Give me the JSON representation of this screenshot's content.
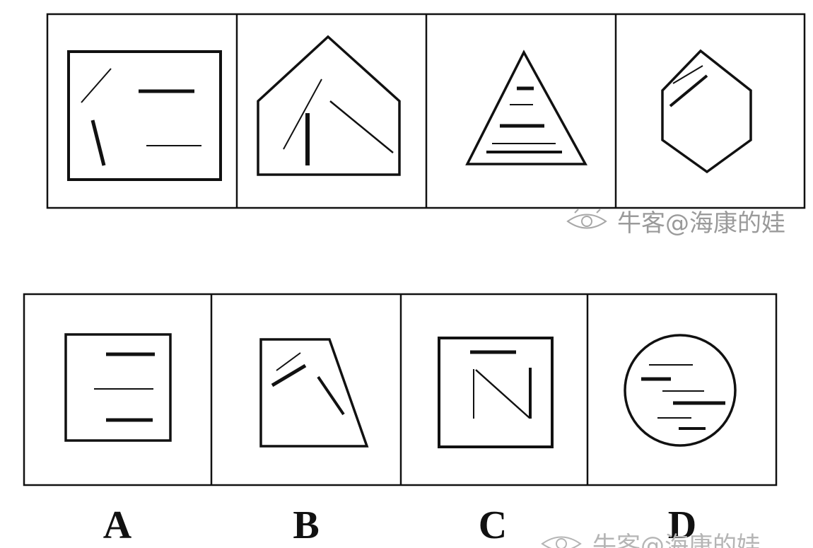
{
  "question_row": {
    "panels": [
      {
        "name": "rectangle-with-lines"
      },
      {
        "name": "pentagon-house-with-lines"
      },
      {
        "name": "triangle-with-lines"
      },
      {
        "name": "hexagon-with-lines"
      }
    ]
  },
  "options_row": {
    "options": [
      {
        "label": "A",
        "name": "square-three-lines"
      },
      {
        "label": "B",
        "name": "trapezoid-with-lines"
      },
      {
        "label": "C",
        "name": "square-n-shape"
      },
      {
        "label": "D",
        "name": "circle-with-lines"
      }
    ]
  },
  "watermark": {
    "icon": "eye-logo-icon",
    "text_top": "牛客@海康的娃",
    "text_bottom": "牛客@海康的娃"
  },
  "colors": {
    "stroke": "#111111",
    "watermark": "#9a9a9a"
  }
}
